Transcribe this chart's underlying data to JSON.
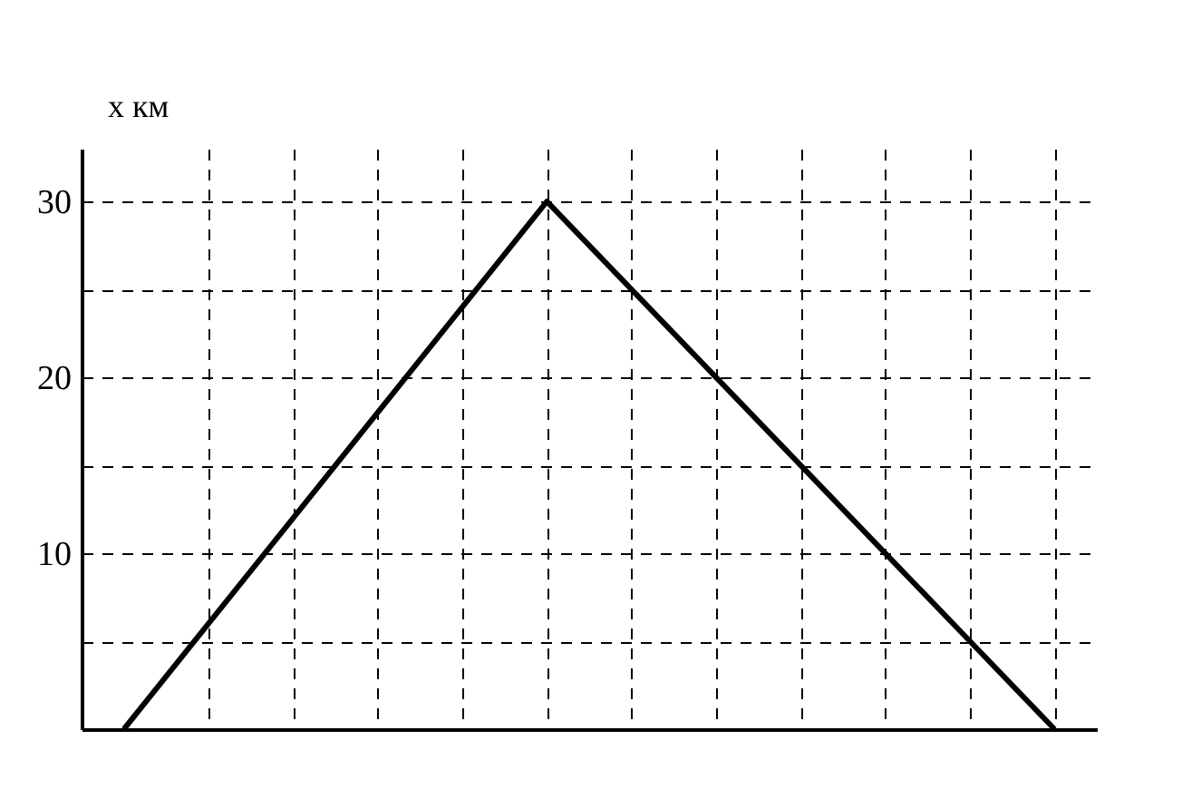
{
  "chart_data": {
    "type": "line",
    "ylabel": "x      км",
    "categories": [
      null,
      null,
      null,
      null,
      null,
      null,
      null,
      null,
      null,
      null,
      null,
      null
    ],
    "series": [
      {
        "color": "#000000",
        "values": [
          0,
          6,
          12,
          18,
          24,
          30,
          25,
          20,
          15,
          10,
          5,
          0
        ]
      }
    ],
    "ylim": [
      0,
      33
    ],
    "yticks": [
      {
        "value": 5,
        "label": null
      },
      10,
      {
        "value": 15,
        "label": null
      },
      20,
      {
        "value": 25,
        "label": null
      },
      30
    ],
    "grid": true,
    "tick_labels": "y"
  }
}
